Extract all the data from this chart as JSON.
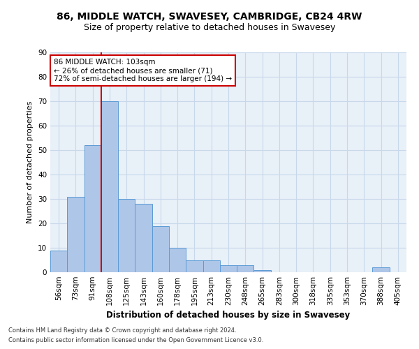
{
  "title1": "86, MIDDLE WATCH, SWAVESEY, CAMBRIDGE, CB24 4RW",
  "title2": "Size of property relative to detached houses in Swavesey",
  "xlabel": "Distribution of detached houses by size in Swavesey",
  "ylabel": "Number of detached properties",
  "categories": [
    "56sqm",
    "73sqm",
    "91sqm",
    "108sqm",
    "125sqm",
    "143sqm",
    "160sqm",
    "178sqm",
    "195sqm",
    "213sqm",
    "230sqm",
    "248sqm",
    "265sqm",
    "283sqm",
    "300sqm",
    "318sqm",
    "335sqm",
    "353sqm",
    "370sqm",
    "388sqm",
    "405sqm"
  ],
  "values": [
    9,
    31,
    52,
    70,
    30,
    28,
    19,
    10,
    5,
    5,
    3,
    3,
    1,
    0,
    0,
    0,
    0,
    0,
    0,
    2,
    0
  ],
  "bar_color": "#aec6e8",
  "bar_edge_color": "#5b9bd5",
  "vline_color": "#cc0000",
  "vline_x": 2.5,
  "annotation_box_text": "86 MIDDLE WATCH: 103sqm\n← 26% of detached houses are smaller (71)\n72% of semi-detached houses are larger (194) →",
  "annotation_box_color": "#cc0000",
  "annotation_box_bg": "#ffffff",
  "ylim": [
    0,
    90
  ],
  "yticks": [
    0,
    10,
    20,
    30,
    40,
    50,
    60,
    70,
    80,
    90
  ],
  "grid_color": "#c8d8ea",
  "bg_color": "#e8f0f8",
  "footer1": "Contains HM Land Registry data © Crown copyright and database right 2024.",
  "footer2": "Contains public sector information licensed under the Open Government Licence v3.0.",
  "title1_fontsize": 10,
  "title2_fontsize": 9,
  "xlabel_fontsize": 8.5,
  "ylabel_fontsize": 8,
  "tick_fontsize": 7.5,
  "ann_fontsize": 7.5
}
